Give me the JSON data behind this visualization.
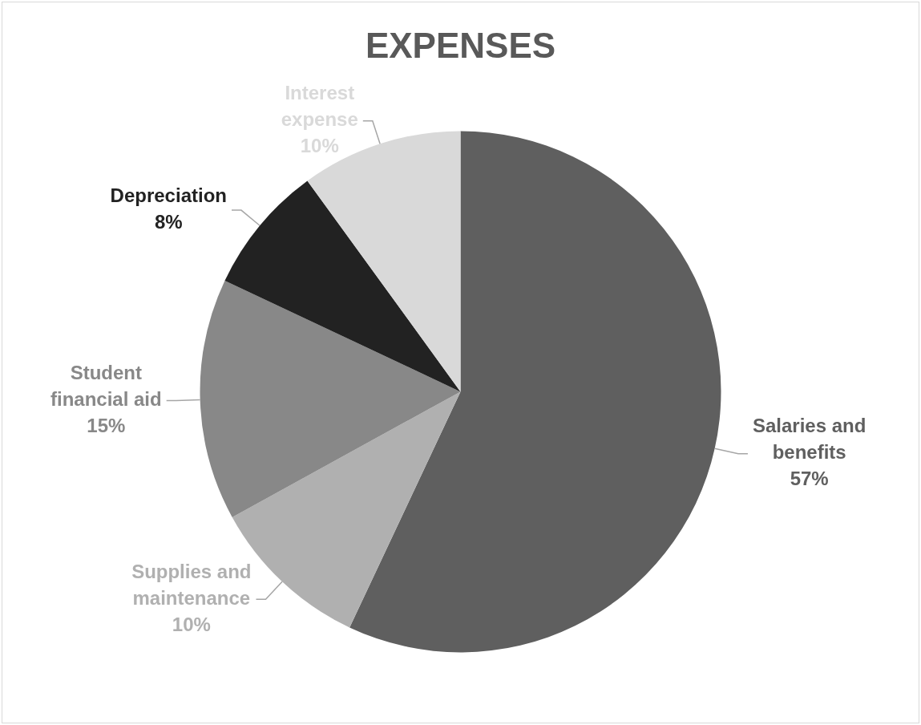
{
  "chart_data": {
    "type": "pie",
    "title": "EXPENSES",
    "categories": [
      "Salaries and benefits",
      "Supplies and maintenance",
      "Student financial aid",
      "Depreciation",
      "Interest expense"
    ],
    "values": [
      57,
      10,
      15,
      8,
      10
    ],
    "value_labels": [
      "57%",
      "10%",
      "15%",
      "8%",
      "10%"
    ],
    "colors": [
      "#5f5f5f",
      "#b0b0b0",
      "#888888",
      "#222222",
      "#d9d9d9"
    ],
    "legend": false
  }
}
